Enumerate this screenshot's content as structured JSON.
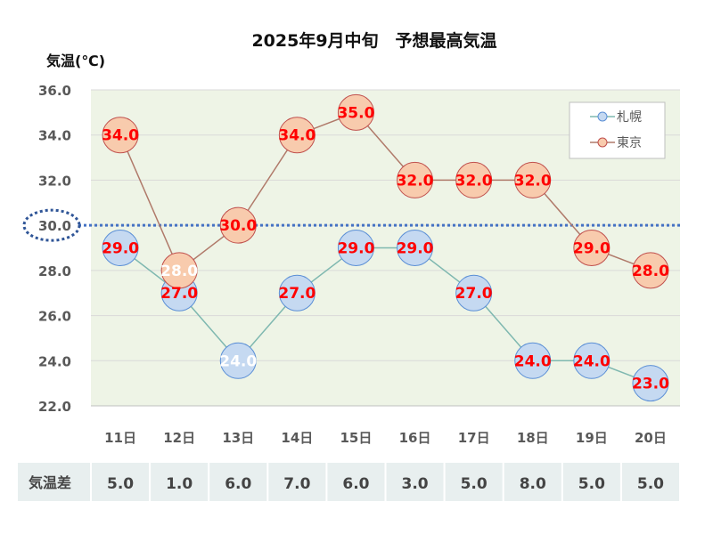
{
  "chart_data": {
    "type": "line",
    "title": "2025年9月中旬　予想最高気温",
    "ylabel": "気温(℃)",
    "ylim": [
      22,
      36
    ],
    "yticks": [
      "22.0",
      "24.0",
      "26.0",
      "28.0",
      "30.0",
      "32.0",
      "34.0",
      "36.0"
    ],
    "categories": [
      "11日",
      "12日",
      "13日",
      "14日",
      "15日",
      "16日",
      "17日",
      "18日",
      "19日",
      "20日"
    ],
    "series": [
      {
        "name": "札幌",
        "values": [
          29.0,
          27.0,
          24.0,
          27.0,
          29.0,
          29.0,
          27.0,
          24.0,
          24.0,
          23.0
        ],
        "labels": [
          "29.0",
          "27.0",
          "24.0",
          "27.0",
          "29.0",
          "29.0",
          "27.0",
          "24.0",
          "24.0",
          "23.0"
        ],
        "marker_fill": "#c5d9f1",
        "marker_stroke": "#5b8fd6",
        "line_color": "#7fb8b0"
      },
      {
        "name": "東京",
        "values": [
          34.0,
          28.0,
          30.0,
          34.0,
          35.0,
          32.0,
          32.0,
          32.0,
          29.0,
          28.0
        ],
        "labels": [
          "34.0",
          "28.0",
          "30.0",
          "34.0",
          "35.0",
          "32.0",
          "32.0",
          "32.0",
          "29.0",
          "28.0"
        ],
        "marker_fill": "#f8cbad",
        "marker_stroke": "#c0504d",
        "line_color": "#b07a6a"
      }
    ],
    "reference_line": {
      "value": 30.0,
      "label": "30.0",
      "color": "#4472c4"
    },
    "legend_position": "top-right",
    "grid": true,
    "plot_background": "#eef4e6",
    "label_color": "#ff0000",
    "label_color_alt": "#ffffff"
  },
  "difference_row": {
    "label": "気温差",
    "values": [
      "5.0",
      "1.0",
      "6.0",
      "7.0",
      "6.0",
      "3.0",
      "5.0",
      "8.0",
      "5.0",
      "5.0"
    ]
  }
}
